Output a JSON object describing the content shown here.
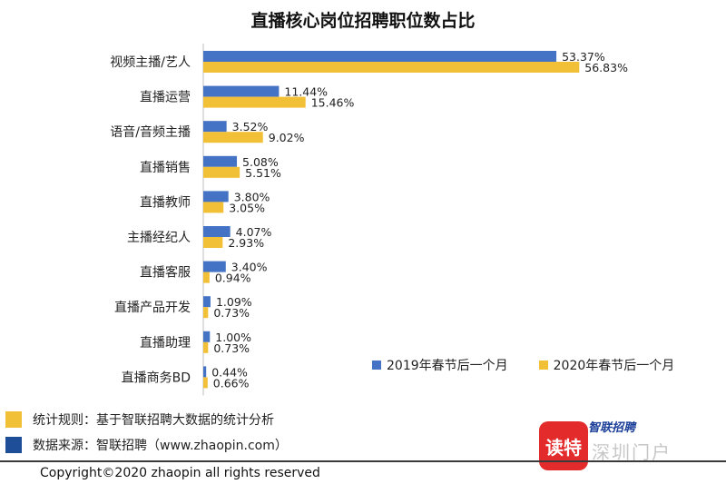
{
  "chart_data": {
    "type": "bar",
    "orientation": "horizontal",
    "title": "直播核心岗位招聘职位数占比",
    "categories": [
      "视频主播/艺人",
      "直播运营",
      "语音/音频主播",
      "直播销售",
      "直播教师",
      "主播经纪人",
      "直播客服",
      "直播产品开发",
      "直播助理",
      "直播商务BD"
    ],
    "series": [
      {
        "name": "2019年春节后一个月",
        "color": "#4472c4",
        "values": [
          53.37,
          11.44,
          3.52,
          5.08,
          3.8,
          4.07,
          3.4,
          1.09,
          1.0,
          0.44
        ],
        "labels": [
          "53.37%",
          "11.44%",
          "3.52%",
          "5.08%",
          "3.80%",
          "4.07%",
          "3.40%",
          "1.09%",
          "1.00%",
          "0.44%"
        ]
      },
      {
        "name": "2020年春节后一个月",
        "color": "#f2c037",
        "values": [
          56.83,
          15.46,
          9.02,
          5.51,
          3.05,
          2.93,
          0.94,
          0.73,
          0.73,
          0.66
        ],
        "labels": [
          "56.83%",
          "15.46%",
          "9.02%",
          "5.51%",
          "3.05%",
          "2.93%",
          "0.94%",
          "0.73%",
          "0.73%",
          "0.66%"
        ]
      }
    ],
    "xlim": [
      0,
      60
    ],
    "legend_position": "bottom-right",
    "grid": false
  },
  "notes": {
    "rule": {
      "text": "统计规则：基于智联招聘大数据的统计分析",
      "color": "#f2c037"
    },
    "source": {
      "text": "数据来源：智联招聘（www.zhaopin.com）",
      "color": "#1f4e99"
    }
  },
  "copyright": "Copyright©2020 zhaopin all rights reserved",
  "brand": {
    "badge_text": "读特",
    "line1": "智联招聘",
    "line2": "深圳门户"
  }
}
